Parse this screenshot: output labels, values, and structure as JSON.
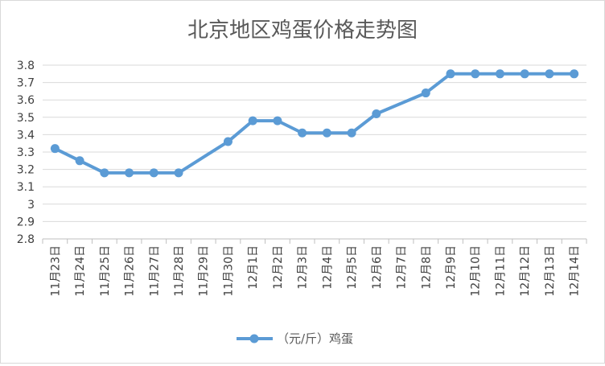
{
  "chart_data": {
    "type": "line",
    "title": "北京地区鸡蛋价格走势图",
    "xlabel": "",
    "ylabel": "",
    "ylim": [
      2.8,
      3.8
    ],
    "yticks": [
      2.8,
      2.9,
      3,
      3.1,
      3.2,
      3.3,
      3.4,
      3.5,
      3.6,
      3.7,
      3.8
    ],
    "categories": [
      "11月23日",
      "11月24日",
      "11月25日",
      "11月26日",
      "11月27日",
      "11月28日",
      "11月29日",
      "11月30日",
      "12月1日",
      "12月2日",
      "12月3日",
      "12月4日",
      "12月5日",
      "12月6日",
      "12月7日",
      "12月8日",
      "12月9日",
      "12月10日",
      "12月11日",
      "12月12日",
      "12月13日",
      "12月14日"
    ],
    "series": [
      {
        "name": "（元/斤）鸡蛋",
        "color": "#5b9bd5",
        "values": [
          3.32,
          3.25,
          3.18,
          3.18,
          3.18,
          3.18,
          null,
          3.36,
          3.48,
          3.48,
          3.41,
          3.41,
          3.41,
          3.52,
          null,
          3.64,
          3.75,
          3.75,
          3.75,
          3.75,
          3.75,
          3.75
        ]
      }
    ],
    "grid": true,
    "legend": "bottom"
  }
}
